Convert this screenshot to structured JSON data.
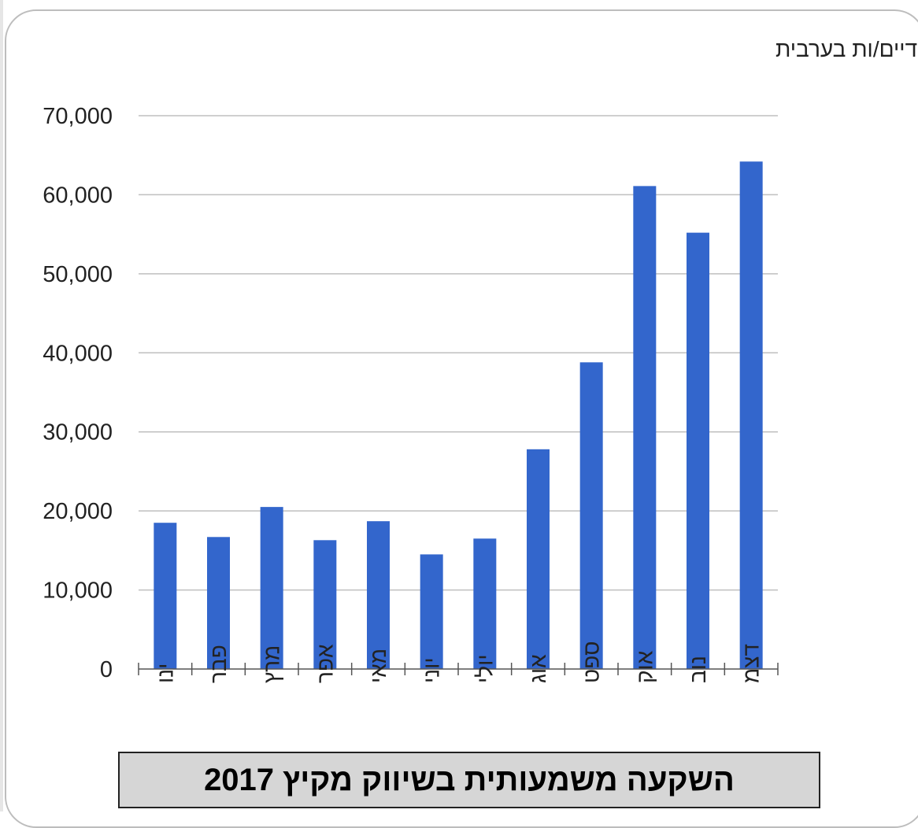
{
  "chart_data": {
    "type": "bar",
    "title": "מספר המשתמשים/ות היחודיים/ות בערבית",
    "categories": [
      "ינו",
      "פבר",
      "מרץ",
      "אפר",
      "מאי",
      "יוני",
      "יולי",
      "אוג",
      "ספט",
      "אוק",
      "נוב",
      "דצמ"
    ],
    "values": [
      18500,
      16700,
      20500,
      16300,
      18700,
      14500,
      16500,
      27800,
      38800,
      61100,
      55200,
      64200
    ],
    "y_ticks": [
      "0",
      "10,000",
      "20,000",
      "30,000",
      "40,000",
      "50,000",
      "60,000",
      "70,000"
    ],
    "ylim": [
      0,
      70000
    ],
    "grid": true,
    "bar_color": "#3366cc"
  },
  "caption": "השקעה משמעותית בשיווק מקיץ 2017"
}
